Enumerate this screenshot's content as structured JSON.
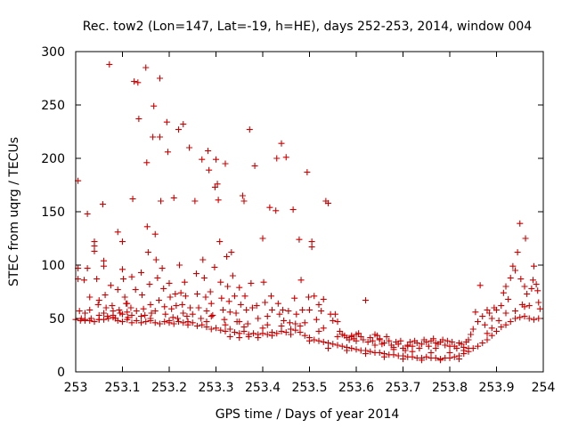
{
  "chart_data": {
    "type": "scatter",
    "title": "Rec. tow2 (Lon=147, Lat=-19, h=HE), days 252-253, 2014, window 004",
    "xlabel": "GPS time / Days of year 2014",
    "ylabel": "STEC from uqrg / TECUs",
    "xlim": [
      253,
      254
    ],
    "ylim": [
      0,
      300
    ],
    "xticks": [
      "253",
      "253.1",
      "253.2",
      "253.3",
      "253.4",
      "253.5",
      "253.6",
      "253.7",
      "253.8",
      "253.9",
      "254"
    ],
    "yticks": [
      "0",
      "50",
      "100",
      "150",
      "200",
      "250",
      "300"
    ],
    "grid": false,
    "legend": "none",
    "marker": "+",
    "color": "#cc0000",
    "points": [
      [
        253.005,
        179
      ],
      [
        253.005,
        97
      ],
      [
        253.005,
        87
      ],
      [
        253.008,
        57
      ],
      [
        253.012,
        50
      ],
      [
        253.018,
        86
      ],
      [
        253.02,
        55
      ],
      [
        253.02,
        49
      ],
      [
        253.025,
        148
      ],
      [
        253.025,
        97
      ],
      [
        253.03,
        70
      ],
      [
        253.03,
        58
      ],
      [
        253.033,
        50
      ],
      [
        253.04,
        122
      ],
      [
        253.04,
        118
      ],
      [
        253.04,
        113
      ],
      [
        253.045,
        87
      ],
      [
        253.048,
        63
      ],
      [
        253.05,
        53
      ],
      [
        253.05,
        49
      ],
      [
        253.058,
        157
      ],
      [
        253.06,
        104
      ],
      [
        253.06,
        99
      ],
      [
        253.063,
        72
      ],
      [
        253.065,
        60
      ],
      [
        253.068,
        52
      ],
      [
        253.072,
        288
      ],
      [
        253.075,
        81
      ],
      [
        253.078,
        62
      ],
      [
        253.08,
        53
      ],
      [
        253.085,
        50
      ],
      [
        253.09,
        131
      ],
      [
        253.09,
        77
      ],
      [
        253.093,
        58
      ],
      [
        253.095,
        55
      ],
      [
        253.1,
        122
      ],
      [
        253.1,
        96
      ],
      [
        253.102,
        87
      ],
      [
        253.105,
        70
      ],
      [
        253.108,
        64
      ],
      [
        253.11,
        56
      ],
      [
        253.112,
        51
      ],
      [
        253.118,
        60
      ],
      [
        253.12,
        89
      ],
      [
        253.122,
        162
      ],
      [
        253.125,
        272
      ],
      [
        253.128,
        77
      ],
      [
        253.13,
        57
      ],
      [
        253.133,
        271
      ],
      [
        253.135,
        237
      ],
      [
        253.14,
        93
      ],
      [
        253.142,
        72
      ],
      [
        253.145,
        59
      ],
      [
        253.148,
        53
      ],
      [
        253.15,
        285
      ],
      [
        253.152,
        196
      ],
      [
        253.153,
        136
      ],
      [
        253.155,
        112
      ],
      [
        253.158,
        82
      ],
      [
        253.16,
        63
      ],
      [
        253.162,
        55
      ],
      [
        253.165,
        220
      ],
      [
        253.167,
        249
      ],
      [
        253.17,
        129
      ],
      [
        253.172,
        105
      ],
      [
        253.175,
        88
      ],
      [
        253.178,
        67
      ],
      [
        253.18,
        275
      ],
      [
        253.18,
        220
      ],
      [
        253.182,
        160
      ],
      [
        253.185,
        97
      ],
      [
        253.188,
        78
      ],
      [
        253.19,
        61
      ],
      [
        253.192,
        54
      ],
      [
        253.195,
        234
      ],
      [
        253.197,
        206
      ],
      [
        253.2,
        83
      ],
      [
        253.202,
        70
      ],
      [
        253.205,
        59
      ],
      [
        253.208,
        51
      ],
      [
        253.21,
        163
      ],
      [
        253.213,
        73
      ],
      [
        253.215,
        62
      ],
      [
        253.218,
        50
      ],
      [
        253.22,
        227
      ],
      [
        253.222,
        100
      ],
      [
        253.225,
        74
      ],
      [
        253.228,
        63
      ],
      [
        253.23,
        232
      ],
      [
        253.233,
        84
      ],
      [
        253.235,
        71
      ],
      [
        253.238,
        52
      ],
      [
        253.24,
        47
      ],
      [
        253.243,
        210
      ],
      [
        253.245,
        60
      ],
      [
        253.25,
        54
      ],
      [
        253.255,
        160
      ],
      [
        253.258,
        92
      ],
      [
        253.26,
        73
      ],
      [
        253.263,
        60
      ],
      [
        253.268,
        50
      ],
      [
        253.27,
        199
      ],
      [
        253.272,
        105
      ],
      [
        253.275,
        88
      ],
      [
        253.278,
        70
      ],
      [
        253.28,
        57
      ],
      [
        253.283,
        207
      ],
      [
        253.285,
        189
      ],
      [
        253.288,
        75
      ],
      [
        253.29,
        64
      ],
      [
        253.293,
        53
      ],
      [
        253.297,
        98
      ],
      [
        253.298,
        173
      ],
      [
        253.3,
        199
      ],
      [
        253.303,
        176
      ],
      [
        253.305,
        161
      ],
      [
        253.308,
        122
      ],
      [
        253.31,
        84
      ],
      [
        253.312,
        69
      ],
      [
        253.315,
        58
      ],
      [
        253.318,
        49
      ],
      [
        253.32,
        195
      ],
      [
        253.323,
        108
      ],
      [
        253.325,
        80
      ],
      [
        253.328,
        66
      ],
      [
        253.33,
        56
      ],
      [
        253.333,
        112
      ],
      [
        253.336,
        90
      ],
      [
        253.34,
        71
      ],
      [
        253.343,
        55
      ],
      [
        253.345,
        47
      ],
      [
        253.35,
        79
      ],
      [
        253.353,
        63
      ],
      [
        253.357,
        165
      ],
      [
        253.36,
        160
      ],
      [
        253.362,
        71
      ],
      [
        253.365,
        58
      ],
      [
        253.368,
        45
      ],
      [
        253.372,
        227
      ],
      [
        253.375,
        83
      ],
      [
        253.378,
        60
      ],
      [
        253.383,
        193
      ],
      [
        253.387,
        62
      ],
      [
        253.39,
        50
      ],
      [
        253.4,
        125
      ],
      [
        253.402,
        84
      ],
      [
        253.405,
        65
      ],
      [
        253.41,
        52
      ],
      [
        253.415,
        154
      ],
      [
        253.418,
        71
      ],
      [
        253.42,
        58
      ],
      [
        253.428,
        151
      ],
      [
        253.43,
        200
      ],
      [
        253.433,
        64
      ],
      [
        253.436,
        54
      ],
      [
        253.44,
        214
      ],
      [
        253.443,
        58
      ],
      [
        253.445,
        48
      ],
      [
        253.45,
        201
      ],
      [
        253.455,
        57
      ],
      [
        253.458,
        46
      ],
      [
        253.465,
        152
      ],
      [
        253.468,
        69
      ],
      [
        253.472,
        54
      ],
      [
        253.478,
        124
      ],
      [
        253.482,
        86
      ],
      [
        253.485,
        58
      ],
      [
        253.49,
        46
      ],
      [
        253.495,
        187
      ],
      [
        253.498,
        70
      ],
      [
        253.5,
        58
      ],
      [
        253.505,
        122
      ],
      [
        253.505,
        117
      ],
      [
        253.51,
        71
      ],
      [
        253.515,
        49
      ],
      [
        253.52,
        63
      ],
      [
        253.525,
        57
      ],
      [
        253.53,
        68
      ],
      [
        253.535,
        160
      ],
      [
        253.54,
        158
      ],
      [
        253.545,
        54
      ],
      [
        253.55,
        48
      ],
      [
        253.555,
        54
      ],
      [
        253.56,
        47
      ],
      [
        253.565,
        38
      ],
      [
        253.57,
        35
      ],
      [
        253.575,
        34
      ],
      [
        253.58,
        32
      ],
      [
        253.585,
        30
      ],
      [
        253.59,
        34
      ],
      [
        253.595,
        31
      ],
      [
        253.6,
        35
      ],
      [
        253.605,
        36
      ],
      [
        253.61,
        33
      ],
      [
        253.615,
        30
      ],
      [
        253.62,
        67
      ],
      [
        253.625,
        28
      ],
      [
        253.63,
        32
      ],
      [
        253.635,
        29
      ],
      [
        253.64,
        35
      ],
      [
        253.645,
        34
      ],
      [
        253.65,
        30
      ],
      [
        253.655,
        26
      ],
      [
        253.66,
        27
      ],
      [
        253.665,
        33
      ],
      [
        253.67,
        29
      ],
      [
        253.675,
        25
      ],
      [
        253.68,
        23
      ],
      [
        253.685,
        28
      ],
      [
        253.69,
        26
      ],
      [
        253.695,
        29
      ],
      [
        253.7,
        22
      ],
      [
        253.705,
        20
      ],
      [
        253.71,
        25
      ],
      [
        253.715,
        28
      ],
      [
        253.72,
        24
      ],
      [
        253.725,
        29
      ],
      [
        253.73,
        27
      ],
      [
        253.735,
        22
      ],
      [
        253.74,
        26
      ],
      [
        253.745,
        30
      ],
      [
        253.75,
        28
      ],
      [
        253.755,
        24
      ],
      [
        253.76,
        29
      ],
      [
        253.765,
        31
      ],
      [
        253.77,
        27
      ],
      [
        253.775,
        26
      ],
      [
        253.78,
        28
      ],
      [
        253.785,
        30
      ],
      [
        253.79,
        25
      ],
      [
        253.795,
        29
      ],
      [
        253.8,
        24
      ],
      [
        253.805,
        28
      ],
      [
        253.81,
        24
      ],
      [
        253.815,
        22
      ],
      [
        253.82,
        27
      ],
      [
        253.825,
        26
      ],
      [
        253.83,
        23
      ],
      [
        253.835,
        28
      ],
      [
        253.84,
        30
      ],
      [
        253.845,
        35
      ],
      [
        253.85,
        40
      ],
      [
        253.855,
        56
      ],
      [
        253.86,
        47
      ],
      [
        253.865,
        81
      ],
      [
        253.87,
        52
      ],
      [
        253.875,
        44
      ],
      [
        253.88,
        58
      ],
      [
        253.885,
        55
      ],
      [
        253.89,
        50
      ],
      [
        253.895,
        60
      ],
      [
        253.9,
        58
      ],
      [
        253.905,
        48
      ],
      [
        253.91,
        62
      ],
      [
        253.915,
        74
      ],
      [
        253.92,
        80
      ],
      [
        253.925,
        68
      ],
      [
        253.93,
        88
      ],
      [
        253.935,
        99
      ],
      [
        253.94,
        95
      ],
      [
        253.945,
        112
      ],
      [
        253.95,
        139
      ],
      [
        253.952,
        87
      ],
      [
        253.955,
        63
      ],
      [
        253.96,
        80
      ],
      [
        253.962,
        125
      ],
      [
        253.965,
        73
      ],
      [
        253.97,
        62
      ],
      [
        253.975,
        78
      ],
      [
        253.978,
        86
      ],
      [
        253.98,
        99
      ],
      [
        253.985,
        82
      ],
      [
        253.988,
        76
      ],
      [
        253.99,
        65
      ],
      [
        253.993,
        59
      ],
      [
        253.0,
        49
      ],
      [
        253.01,
        48
      ],
      [
        253.02,
        48
      ],
      [
        253.03,
        48
      ],
      [
        253.04,
        47
      ],
      [
        253.05,
        49
      ],
      [
        253.06,
        49
      ],
      [
        253.07,
        50
      ],
      [
        253.08,
        51
      ],
      [
        253.09,
        48
      ],
      [
        253.1,
        47
      ],
      [
        253.11,
        49
      ],
      [
        253.12,
        46
      ],
      [
        253.13,
        48
      ],
      [
        253.14,
        46
      ],
      [
        253.15,
        47
      ],
      [
        253.16,
        48
      ],
      [
        253.17,
        46
      ],
      [
        253.18,
        45
      ],
      [
        253.19,
        47
      ],
      [
        253.2,
        46
      ],
      [
        253.21,
        45
      ],
      [
        253.22,
        47
      ],
      [
        253.23,
        46
      ],
      [
        253.24,
        44
      ],
      [
        253.25,
        46
      ],
      [
        253.26,
        43
      ],
      [
        253.27,
        44
      ],
      [
        253.28,
        42
      ],
      [
        253.29,
        40
      ],
      [
        253.3,
        41
      ],
      [
        253.31,
        39
      ],
      [
        253.32,
        38
      ],
      [
        253.33,
        40
      ],
      [
        253.34,
        37
      ],
      [
        253.35,
        36
      ],
      [
        253.36,
        38
      ],
      [
        253.37,
        35
      ],
      [
        253.38,
        36
      ],
      [
        253.39,
        35
      ],
      [
        253.4,
        36
      ],
      [
        253.41,
        35
      ],
      [
        253.42,
        37
      ],
      [
        253.43,
        36
      ],
      [
        253.44,
        38
      ],
      [
        253.45,
        37
      ],
      [
        253.46,
        40
      ],
      [
        253.47,
        39
      ],
      [
        253.48,
        37
      ],
      [
        253.49,
        34
      ],
      [
        253.5,
        32
      ],
      [
        253.51,
        30
      ],
      [
        253.52,
        29
      ],
      [
        253.53,
        28
      ],
      [
        253.54,
        27
      ],
      [
        253.55,
        26
      ],
      [
        253.56,
        25
      ],
      [
        253.57,
        24
      ],
      [
        253.58,
        23
      ],
      [
        253.59,
        22
      ],
      [
        253.6,
        21
      ],
      [
        253.61,
        20
      ],
      [
        253.62,
        20
      ],
      [
        253.63,
        19
      ],
      [
        253.64,
        18
      ],
      [
        253.65,
        18
      ],
      [
        253.66,
        17
      ],
      [
        253.67,
        16
      ],
      [
        253.68,
        16
      ],
      [
        253.69,
        15
      ],
      [
        253.7,
        15
      ],
      [
        253.71,
        14
      ],
      [
        253.72,
        14
      ],
      [
        253.73,
        13
      ],
      [
        253.74,
        13
      ],
      [
        253.75,
        14
      ],
      [
        253.76,
        13
      ],
      [
        253.77,
        13
      ],
      [
        253.78,
        12
      ],
      [
        253.79,
        13
      ],
      [
        253.8,
        13
      ],
      [
        253.81,
        14
      ],
      [
        253.82,
        15
      ],
      [
        253.83,
        17
      ],
      [
        253.84,
        19
      ],
      [
        253.85,
        22
      ],
      [
        253.86,
        24
      ],
      [
        253.87,
        27
      ],
      [
        253.88,
        30
      ],
      [
        253.89,
        34
      ],
      [
        253.9,
        38
      ],
      [
        253.91,
        42
      ],
      [
        253.92,
        44
      ],
      [
        253.93,
        47
      ],
      [
        253.94,
        50
      ],
      [
        253.95,
        51
      ],
      [
        253.96,
        52
      ],
      [
        253.97,
        50
      ],
      [
        253.98,
        49
      ],
      [
        253.99,
        50
      ],
      [
        253.06,
        55
      ],
      [
        253.08,
        57
      ],
      [
        253.1,
        54
      ],
      [
        253.12,
        53
      ],
      [
        253.14,
        52
      ],
      [
        253.16,
        50
      ],
      [
        253.2,
        48
      ],
      [
        253.24,
        47
      ],
      [
        253.28,
        47
      ],
      [
        253.32,
        44
      ],
      [
        253.36,
        42
      ],
      [
        253.4,
        41
      ],
      [
        253.44,
        43
      ],
      [
        253.48,
        43
      ],
      [
        253.52,
        38
      ],
      [
        253.56,
        33
      ],
      [
        253.6,
        29
      ],
      [
        253.64,
        25
      ],
      [
        253.68,
        21
      ],
      [
        253.72,
        19
      ],
      [
        253.76,
        18
      ],
      [
        253.8,
        18
      ],
      [
        253.84,
        22
      ],
      [
        253.88,
        36
      ],
      [
        253.92,
        55
      ],
      [
        253.96,
        61
      ],
      [
        253.05,
        67
      ],
      [
        253.11,
        64
      ],
      [
        253.17,
        57
      ],
      [
        253.23,
        55
      ],
      [
        253.29,
        52
      ],
      [
        253.35,
        47
      ],
      [
        253.41,
        44
      ],
      [
        253.47,
        45
      ],
      [
        253.53,
        41
      ],
      [
        253.59,
        33
      ],
      [
        253.65,
        31
      ],
      [
        253.71,
        24
      ],
      [
        253.77,
        22
      ],
      [
        253.83,
        20
      ],
      [
        253.89,
        41
      ],
      [
        253.94,
        57
      ],
      [
        253.33,
        33
      ],
      [
        253.35,
        32
      ],
      [
        253.37,
        33
      ],
      [
        253.39,
        32
      ],
      [
        253.42,
        34
      ],
      [
        253.46,
        35
      ],
      [
        253.5,
        29
      ],
      [
        253.54,
        22
      ],
      [
        253.58,
        20
      ],
      [
        253.62,
        17
      ],
      [
        253.66,
        14
      ],
      [
        253.7,
        12
      ],
      [
        253.74,
        11
      ],
      [
        253.78,
        11
      ],
      [
        253.82,
        12
      ]
    ]
  }
}
